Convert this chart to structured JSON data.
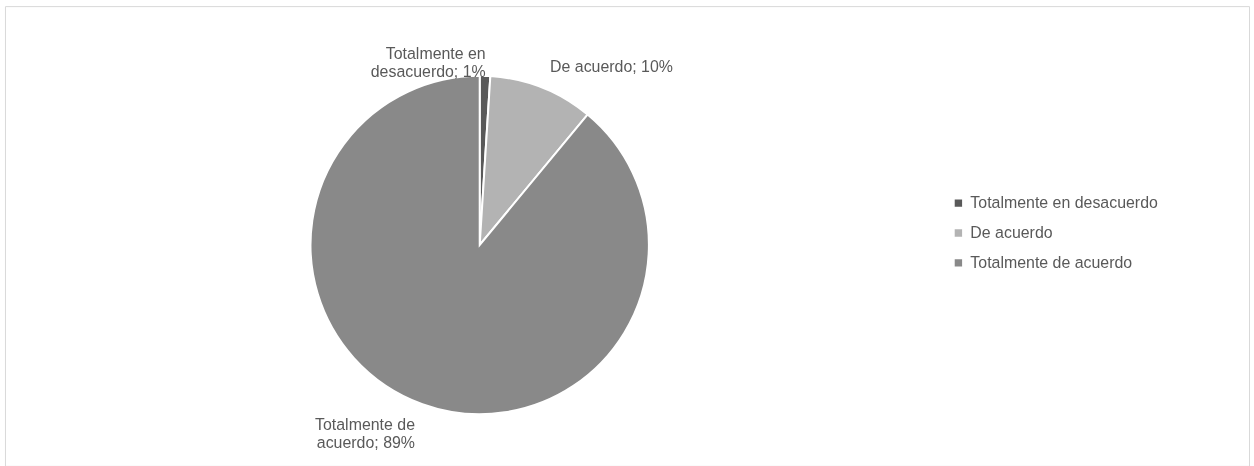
{
  "chart_data": {
    "type": "pie",
    "categories": [
      "Totalmente en desacuerdo",
      "De acuerdo",
      "Totalmente de acuerdo"
    ],
    "values": [
      1,
      10,
      89
    ],
    "colors": [
      "#595959",
      "#b3b3b3",
      "#898989"
    ],
    "value_labels": [
      "Totalmente en desacuerdo; 1%",
      "De acuerdo; 10%",
      "Totalmente de acuerdo; 89%"
    ],
    "legend": "right"
  }
}
